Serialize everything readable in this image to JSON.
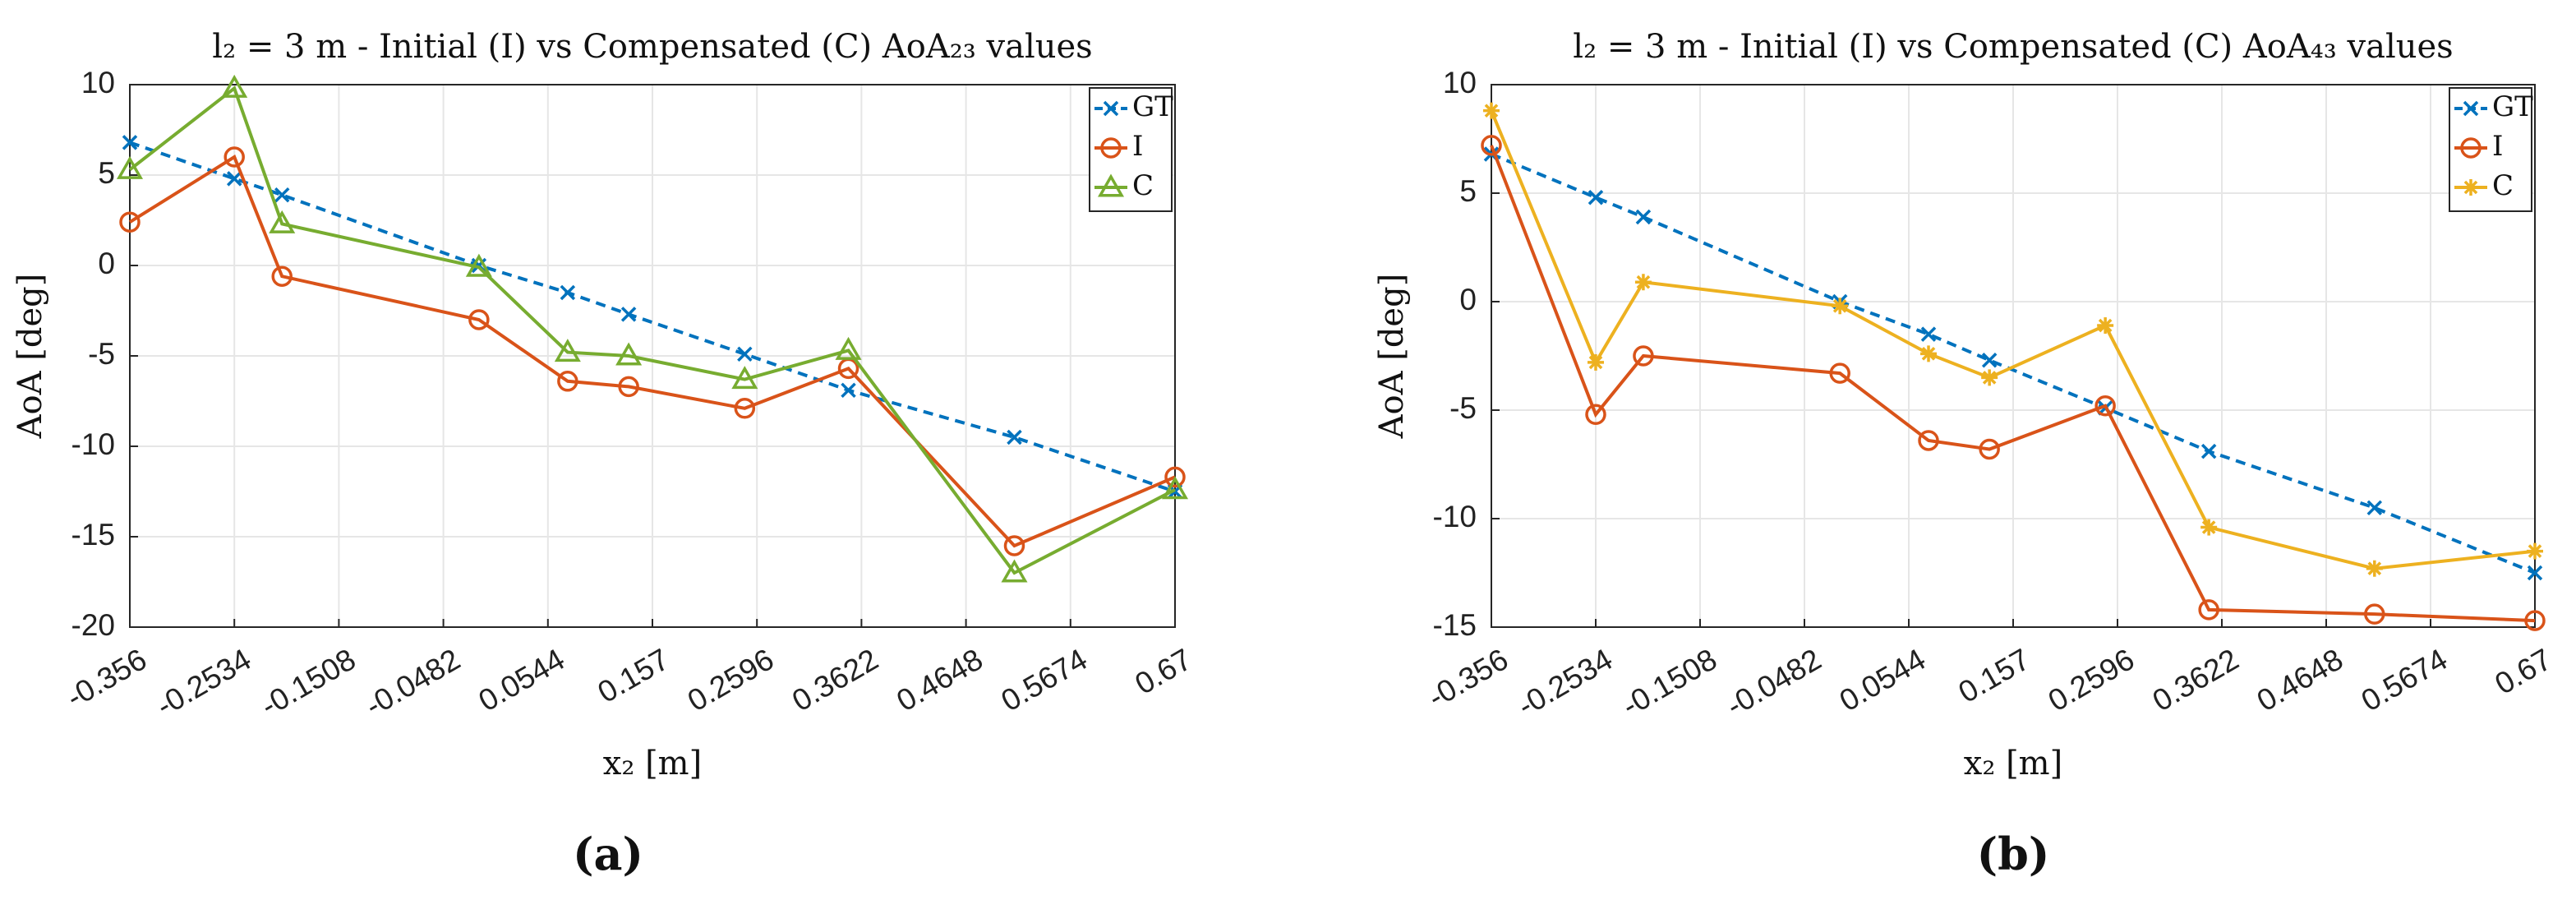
{
  "chart_data": [
    {
      "type": "line",
      "panel_label": "(a)",
      "title": "l₂ = 3 m - Initial (I) vs Compensated (C) AoA₂₃ values",
      "xlabel": "x₂ [m]",
      "ylabel": "AoA [deg]",
      "xlim": [
        -0.356,
        0.67
      ],
      "ylim": [
        -20,
        10
      ],
      "xticks": [
        "-0.356",
        "-0.2534",
        "-0.1508",
        "-0.0482",
        "0.0544",
        "0.157",
        "0.2596",
        "0.3622",
        "0.4648",
        "0.5674",
        "0.67"
      ],
      "yticks": [
        "10",
        "5",
        "0",
        "-5",
        "-10",
        "-15",
        "-20"
      ],
      "grid": true,
      "legend_position": "top-right",
      "x": [
        -0.356,
        -0.2534,
        -0.2066,
        -0.0133,
        0.0738,
        0.1337,
        0.2476,
        0.3494,
        0.5123,
        0.67
      ],
      "series": [
        {
          "name": "GT",
          "color": "#0072BD",
          "marker": "x",
          "dash": true,
          "values": [
            6.8,
            4.8,
            3.9,
            0.0,
            -1.5,
            -2.7,
            -4.9,
            -6.9,
            -9.5,
            -12.5
          ]
        },
        {
          "name": "I",
          "color": "#D95319",
          "marker": "o",
          "dash": false,
          "values": [
            2.4,
            6.0,
            -0.6,
            -3.0,
            -6.4,
            -6.7,
            -7.9,
            -5.7,
            -15.5,
            -11.7
          ]
        },
        {
          "name": "C",
          "color": "#77AC30",
          "marker": "triangle",
          "dash": false,
          "values": [
            5.3,
            9.8,
            2.3,
            -0.1,
            -4.8,
            -5.0,
            -6.3,
            -4.7,
            -17.0,
            -12.4
          ]
        }
      ]
    },
    {
      "type": "line",
      "panel_label": "(b)",
      "title": "l₂ = 3 m - Initial (I) vs Compensated (C) AoA₄₃ values",
      "xlabel": "x₂ [m]",
      "ylabel": "AoA [deg]",
      "xlim": [
        -0.356,
        0.67
      ],
      "ylim": [
        -15,
        10
      ],
      "xticks": [
        "-0.356",
        "-0.2534",
        "-0.1508",
        "-0.0482",
        "0.0544",
        "0.157",
        "0.2596",
        "0.3622",
        "0.4648",
        "0.5674",
        "0.67"
      ],
      "yticks": [
        "10",
        "5",
        "0",
        "-5",
        "-10",
        "-15"
      ],
      "grid": true,
      "legend_position": "top-right",
      "x": [
        -0.356,
        -0.2534,
        -0.2066,
        -0.0133,
        0.0738,
        0.1337,
        0.2476,
        0.3494,
        0.5123,
        0.67
      ],
      "series": [
        {
          "name": "GT",
          "color": "#0072BD",
          "marker": "x",
          "dash": true,
          "values": [
            6.8,
            4.8,
            3.9,
            0.0,
            -1.5,
            -2.7,
            -4.9,
            -6.9,
            -9.5,
            -12.5
          ]
        },
        {
          "name": "I",
          "color": "#D95319",
          "marker": "o",
          "dash": false,
          "values": [
            7.2,
            -5.2,
            -2.5,
            -3.3,
            -6.4,
            -6.8,
            -4.8,
            -14.2,
            -14.4,
            -14.7
          ]
        },
        {
          "name": "C",
          "color": "#EDB120",
          "marker": "star",
          "dash": false,
          "values": [
            8.8,
            -2.8,
            0.9,
            -0.2,
            -2.4,
            -3.5,
            -1.1,
            -10.4,
            -12.3,
            -11.5
          ]
        }
      ]
    }
  ]
}
